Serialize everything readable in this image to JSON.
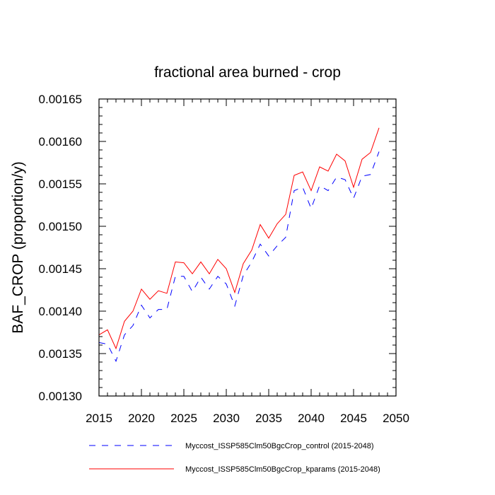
{
  "chart_data": {
    "type": "line",
    "title": "fractional area burned - crop",
    "xlabel": "",
    "ylabel": "BAF_CROP  (proportion/y)",
    "xlim": [
      2015,
      2050
    ],
    "ylim": [
      0.0013,
      0.00165
    ],
    "xticks": [
      2015,
      2020,
      2025,
      2030,
      2035,
      2040,
      2045,
      2050
    ],
    "xtick_labels": [
      "2015",
      "2020",
      "2025",
      "2030",
      "2035",
      "2040",
      "2045",
      "2050"
    ],
    "yticks": [
      0.0013,
      0.00135,
      0.0014,
      0.00145,
      0.0015,
      0.00155,
      0.0016,
      0.00165
    ],
    "ytick_labels": [
      "0.00130",
      "0.00135",
      "0.00140",
      "0.00145",
      "0.00150",
      "0.00155",
      "0.00160",
      "0.00165"
    ],
    "x": [
      2015,
      2016,
      2017,
      2018,
      2019,
      2020,
      2021,
      2022,
      2023,
      2024,
      2025,
      2026,
      2027,
      2028,
      2029,
      2030,
      2031,
      2032,
      2033,
      2034,
      2035,
      2036,
      2037,
      2038,
      2039,
      2040,
      2041,
      2042,
      2043,
      2044,
      2045,
      2046,
      2047,
      2048
    ],
    "series": [
      {
        "name": "Myccost_ISSP585Clm50BgcCrop_control (2015-2048)",
        "color": "#0000ff",
        "dash": "dashed",
        "values": [
          0.001363,
          0.001361,
          0.001341,
          0.001372,
          0.001383,
          0.001407,
          0.001392,
          0.001402,
          0.001402,
          0.001441,
          0.001441,
          0.001423,
          0.00144,
          0.001426,
          0.001441,
          0.001432,
          0.001406,
          0.001442,
          0.001458,
          0.001479,
          0.001465,
          0.001477,
          0.001487,
          0.001542,
          0.001546,
          0.001521,
          0.001548,
          0.001542,
          0.001558,
          0.001555,
          0.001533,
          0.001559,
          0.001561,
          0.001588
        ]
      },
      {
        "name": "Myccost_ISSP585Clm50BgcCrop_kparams (2015-2048)",
        "color": "#ff0000",
        "dash": "solid",
        "values": [
          0.001372,
          0.001378,
          0.001356,
          0.001388,
          0.0014,
          0.001426,
          0.001414,
          0.001424,
          0.001421,
          0.001458,
          0.001457,
          0.001444,
          0.001458,
          0.001444,
          0.001461,
          0.00145,
          0.001422,
          0.001456,
          0.001472,
          0.001502,
          0.001486,
          0.001503,
          0.001514,
          0.00156,
          0.001564,
          0.001542,
          0.00157,
          0.001565,
          0.001585,
          0.001577,
          0.001546,
          0.001579,
          0.001587,
          0.001616
        ]
      }
    ],
    "legend": [
      "Myccost_ISSP585Clm50BgcCrop_control (2015-2048)",
      "Myccost_ISSP585Clm50BgcCrop_kparams (2015-2048)"
    ],
    "legend_position": "bottom"
  }
}
